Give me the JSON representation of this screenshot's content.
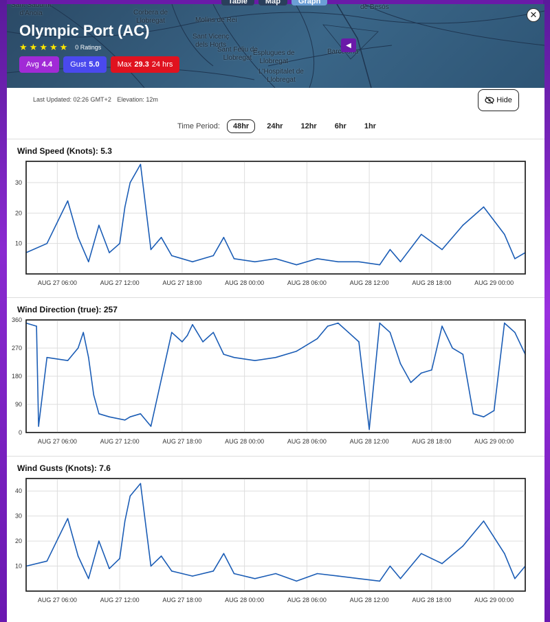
{
  "tabs": [
    {
      "label": "Table",
      "active": false
    },
    {
      "label": "Map",
      "active": false
    },
    {
      "label": "Graph",
      "active": true
    }
  ],
  "map": {
    "labels": {
      "sant_sadurni": "Sant Sadurní\nd'Anoia",
      "corbera": "Corbera de\nLlobregat",
      "molins": "Molins de Rei",
      "sant_vicenc": "Sant Vicenç\ndels Horts",
      "sant_feliu": "Sant Feliu de\nLlobregat",
      "esplugues": "Esplugues de\nLlobregat",
      "hospitalet": "L'Hospitalet de\nLlobregat",
      "barcelona": "Barcelona",
      "besos": "de Besòs"
    }
  },
  "station": {
    "name": "Olympic Port (AC)",
    "stars": 5,
    "ratings": "0 Ratings"
  },
  "badges": {
    "avg_label": "Avg",
    "avg_value": "4.4",
    "gust_label": "Gust",
    "gust_value": "5.0",
    "max_label": "Max",
    "max_value": "29.3",
    "max_period": "24 hrs"
  },
  "meta": {
    "last_updated": "Last Updated: 02:26 GMT+2",
    "elevation": "Elevation: 12m"
  },
  "hide_label": "Hide",
  "time_period": {
    "label": "Time Period:",
    "options": [
      "48hr",
      "24hr",
      "12hr",
      "6hr",
      "1hr"
    ],
    "selected": "48hr"
  },
  "colors": {
    "line": "#1a5cb5",
    "avg": "#a12ad6",
    "gust": "#4a49ee",
    "max": "#e0121f"
  },
  "chart_data": [
    {
      "type": "line",
      "title": "Wind Speed (Knots): 5.3",
      "x_ticks": [
        "AUG 27 06:00",
        "AUG 27 12:00",
        "AUG 27 18:00",
        "AUG 28 00:00",
        "AUG 28 06:00",
        "AUG 28 12:00",
        "AUG 28 18:00",
        "AUG 29 00:00"
      ],
      "y_ticks": [
        10,
        20,
        30
      ],
      "ylim": [
        0,
        37
      ],
      "x_hours": [
        0,
        2,
        4,
        5,
        6,
        7,
        8,
        9,
        9.5,
        10,
        11,
        12,
        13,
        14,
        16,
        18,
        19,
        20,
        22,
        24,
        26,
        28,
        30,
        32,
        34,
        35,
        36,
        38,
        40,
        42,
        44,
        46,
        47,
        48
      ],
      "values": [
        7,
        10,
        24,
        12,
        4,
        16,
        7,
        10,
        22,
        30,
        36,
        8,
        12,
        6,
        4,
        6,
        12,
        5,
        4,
        5,
        3,
        5,
        4,
        4,
        3,
        8,
        4,
        13,
        8,
        16,
        22,
        13,
        5,
        7
      ]
    },
    {
      "type": "line",
      "title": "Wind Direction (true): 257",
      "x_ticks": [
        "AUG 27 06:00",
        "AUG 27 12:00",
        "AUG 27 18:00",
        "AUG 28 00:00",
        "AUG 28 06:00",
        "AUG 28 12:00",
        "AUG 28 18:00",
        "AUG 29 00:00"
      ],
      "y_ticks": [
        0,
        90,
        180,
        270,
        360
      ],
      "ylim": [
        0,
        360
      ],
      "x_hours": [
        0,
        1,
        1.2,
        2,
        4,
        5,
        5.5,
        6,
        6.5,
        7,
        8,
        9.5,
        10,
        11,
        12,
        14,
        15,
        15.5,
        16,
        17,
        18,
        19,
        20,
        22,
        24,
        26,
        28,
        29,
        30,
        31,
        32,
        33,
        33.5,
        34,
        35,
        36,
        37,
        38,
        39,
        40,
        41,
        42,
        43,
        44,
        45,
        46,
        47,
        48
      ],
      "values": [
        350,
        340,
        20,
        240,
        230,
        270,
        320,
        240,
        120,
        60,
        50,
        40,
        50,
        60,
        20,
        320,
        290,
        310,
        345,
        290,
        320,
        250,
        240,
        230,
        240,
        260,
        300,
        340,
        350,
        320,
        290,
        10,
        180,
        350,
        320,
        220,
        160,
        190,
        200,
        340,
        270,
        250,
        60,
        50,
        70,
        350,
        320,
        250
      ]
    },
    {
      "type": "line",
      "title": "Wind Gusts (Knots): 7.6",
      "x_ticks": [
        "AUG 27 06:00",
        "AUG 27 12:00",
        "AUG 27 18:00",
        "AUG 28 00:00",
        "AUG 28 06:00",
        "AUG 28 12:00",
        "AUG 28 18:00",
        "AUG 29 00:00"
      ],
      "y_ticks": [
        10,
        20,
        30,
        40
      ],
      "ylim": [
        0,
        45
      ],
      "x_hours": [
        0,
        2,
        4,
        5,
        6,
        7,
        8,
        9,
        9.5,
        10,
        11,
        12,
        13,
        14,
        16,
        18,
        19,
        20,
        22,
        24,
        26,
        28,
        30,
        32,
        34,
        35,
        36,
        38,
        40,
        42,
        44,
        46,
        47,
        48
      ],
      "values": [
        10,
        12,
        29,
        14,
        5,
        20,
        9,
        13,
        28,
        38,
        43,
        10,
        14,
        8,
        6,
        8,
        15,
        7,
        5,
        7,
        4,
        7,
        6,
        5,
        4,
        10,
        5,
        15,
        11,
        18,
        28,
        15,
        5,
        10
      ]
    }
  ]
}
